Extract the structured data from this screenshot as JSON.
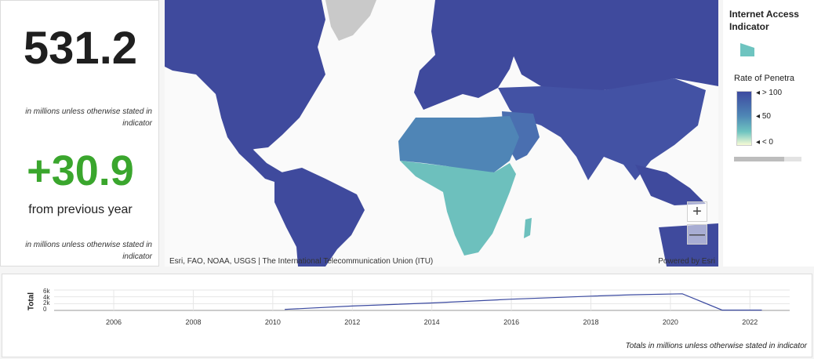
{
  "stats": {
    "value": "531.2",
    "value_note": "in millions unless otherwise stated in indicator",
    "change": "+30.9",
    "change_label": "from previous year",
    "change_note": "in millions unless otherwise stated in indicator"
  },
  "map": {
    "attribution": "Esri, FAO, NOAA, USGS | The International Telecommunication Union (ITU)",
    "powered_by": "Powered by Esri",
    "zoom_in": "+",
    "zoom_out": "—"
  },
  "legend": {
    "title": "Internet Access Indicator",
    "subtitle": "Rate of Penetra",
    "ramp_labels": [
      "> 100",
      "50",
      "< 0"
    ],
    "colors": {
      "high": "#3d4aa0",
      "mid": "#4e86b5",
      "low": "#6ec4c0",
      "min": "#f7fbd5"
    }
  },
  "timeline": {
    "ylabel": "Total",
    "yticks": [
      "6k",
      "4k",
      "2k",
      "0"
    ],
    "xticks": [
      "2006",
      "2008",
      "2010",
      "2012",
      "2014",
      "2016",
      "2018",
      "2020",
      "2022"
    ],
    "note": "Totals in millions unless otherwise stated in indicator"
  },
  "chart_data": {
    "type": "line",
    "x": [
      2010.3,
      2012,
      2014,
      2016,
      2018,
      2019,
      2020.3,
      2021.3,
      2022.3
    ],
    "values": [
      300,
      1300,
      2200,
      3300,
      4200,
      4600,
      4900,
      100,
      100
    ],
    "ylim": [
      0,
      6000
    ],
    "xlim": [
      2004.5,
      2023
    ],
    "ylabel": "Total",
    "grid": true
  }
}
